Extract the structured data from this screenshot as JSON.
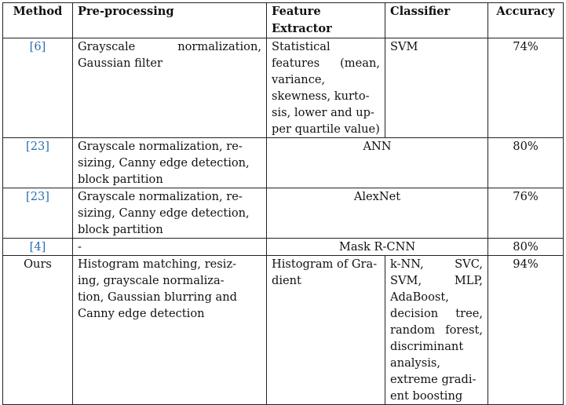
{
  "table": {
    "headers": {
      "method": "Method",
      "preprocessing": "Pre-processing",
      "feature_extractor": "Feature Extractor",
      "classifier": "Classifier",
      "accuracy": "Accuracy"
    },
    "rows": [
      {
        "method": "[6]",
        "preprocessing": "Grayscale normalization, Gaussian filter",
        "feature_extractor": "Statistical features (mean, variance, skewness, kurto-sis, lower and up-per quartile value)",
        "classifier": "SVM",
        "accuracy": "74%"
      },
      {
        "method": "[23]",
        "preprocessing": "Grayscale normalization, re-sizing, Canny edge detection, block partition",
        "merged": "ANN",
        "accuracy": "80%"
      },
      {
        "method": "[23]",
        "preprocessing": "Grayscale normalization, re-sizing, Canny edge detection, block partition",
        "merged": "AlexNet",
        "accuracy": "76%"
      },
      {
        "method": "[4]",
        "preprocessing": "-",
        "merged": "Mask R-CNN",
        "accuracy": "80%"
      },
      {
        "method": "Ours",
        "preprocessing": "Histogram matching, resiz-ing, grayscale normaliza-tion, Gaussian blurring and Canny edge detection",
        "feature_extractor": "Histogram of Gra-dient",
        "classifier": "k-NN, SVC, SVM, MLP, AdaBoost, decision tree, random forest, discriminant analysis, extreme gradi-ent boosting",
        "accuracy": "94%"
      }
    ]
  },
  "colors": {
    "citation_link": "#2a6db5",
    "text": "#111111",
    "border": "#222222"
  }
}
